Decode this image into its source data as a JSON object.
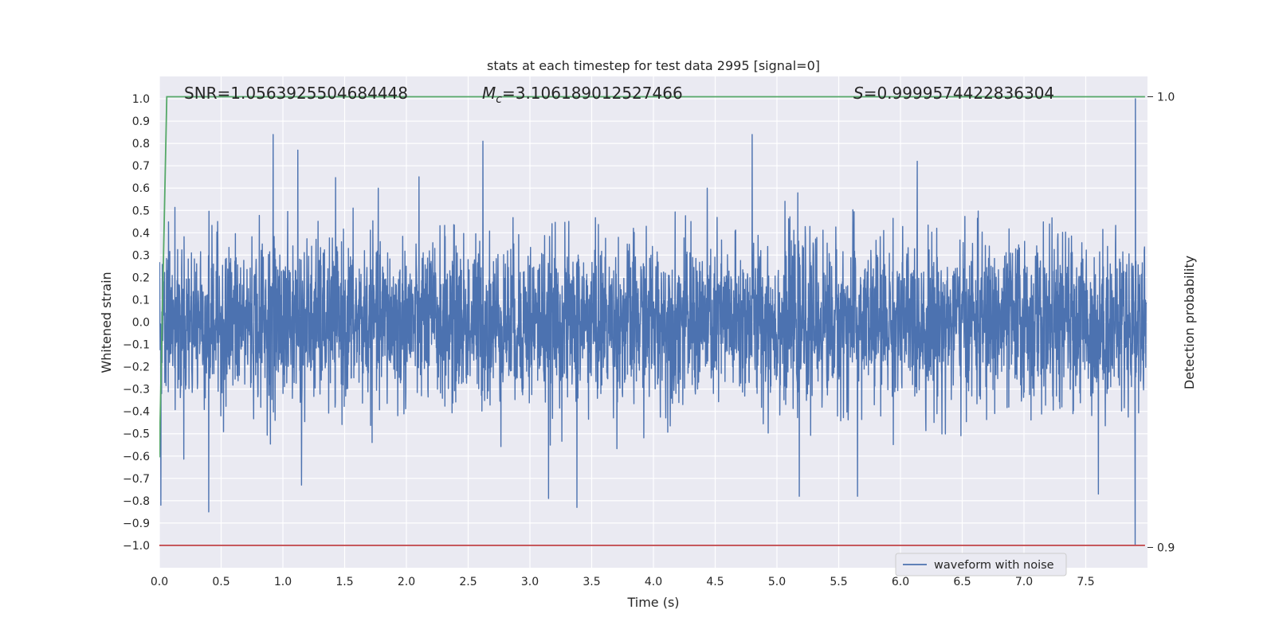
{
  "chart_data": {
    "type": "line",
    "title": "stats at each timestep for test data 2995 [signal=0]",
    "xlabel": "Time (s)",
    "ylabel": "Whitened strain",
    "y2label": "Detection probability",
    "xlim": [
      0.0,
      8.0
    ],
    "ylim": [
      -1.1,
      1.1
    ],
    "y2lim": [
      0.8955,
      1.0045
    ],
    "x_ticks": [
      0.0,
      0.5,
      1.0,
      1.5,
      2.0,
      2.5,
      3.0,
      3.5,
      4.0,
      4.5,
      5.0,
      5.5,
      6.0,
      6.5,
      7.0,
      7.5
    ],
    "x_tick_labels": [
      "0.0",
      "0.5",
      "1.0",
      "1.5",
      "2.0",
      "2.5",
      "3.0",
      "3.5",
      "4.0",
      "4.5",
      "5.0",
      "5.5",
      "6.0",
      "6.5",
      "7.0",
      "7.5"
    ],
    "y_ticks": [
      1.0,
      0.9,
      0.8,
      0.7,
      0.6,
      0.5,
      0.4,
      0.3,
      0.2,
      0.1,
      0.0,
      -0.1,
      -0.2,
      -0.3,
      -0.4,
      -0.5,
      -0.6,
      -0.7,
      -0.8,
      -0.9,
      -1.0
    ],
    "y_tick_labels": [
      "1.0",
      "0.9",
      "0.8",
      "0.7",
      "0.6",
      "0.5",
      "0.4",
      "0.3",
      "0.2",
      "0.1",
      "0.0",
      "−0.1",
      "−0.2",
      "−0.3",
      "−0.4",
      "−0.5",
      "−0.6",
      "−0.7",
      "−0.8",
      "−0.9",
      "−1.0"
    ],
    "y2_ticks": [
      1.0,
      0.9
    ],
    "y2_tick_labels": [
      "1.0",
      "0.9"
    ],
    "grid": true,
    "legend_placement": "lower-center-right",
    "annotations": {
      "snr": "SNR=1.0563925504684448",
      "mc_symbol": "M",
      "mc_sub": "c",
      "mc_value": "=3.106189012527466",
      "s_symbol": "S",
      "s_value": "=0.9999574422836304"
    },
    "series": [
      {
        "name": "waveform with noise",
        "color": "#4c72b0",
        "x_range": [
          0.0,
          7.99
        ],
        "noise_amplitude_typical": 0.33,
        "peaks": [
          {
            "x": 0.01,
            "y": -0.82
          },
          {
            "x": 0.4,
            "y": -0.85
          },
          {
            "x": 0.92,
            "y": 0.84
          },
          {
            "x": 1.12,
            "y": 0.77
          },
          {
            "x": 1.15,
            "y": -0.73
          },
          {
            "x": 2.62,
            "y": 0.81
          },
          {
            "x": 3.15,
            "y": -0.79
          },
          {
            "x": 3.38,
            "y": -0.83
          },
          {
            "x": 4.8,
            "y": 0.84
          },
          {
            "x": 5.18,
            "y": -0.78
          },
          {
            "x": 5.65,
            "y": -0.78
          },
          {
            "x": 7.6,
            "y": -0.77
          },
          {
            "x": 7.9,
            "y": 1.0
          },
          {
            "x": 7.9,
            "y": -1.0
          }
        ]
      },
      {
        "color": "#55a868",
        "axis": "y2",
        "x": [
          0.0,
          0.06,
          7.98
        ],
        "y": [
          0.92,
          1.0,
          1.0
        ]
      },
      {
        "color": "#c44e52",
        "axis": "y",
        "x": [
          0.0,
          7.98
        ],
        "y": [
          -1.0,
          -1.0
        ]
      }
    ]
  }
}
